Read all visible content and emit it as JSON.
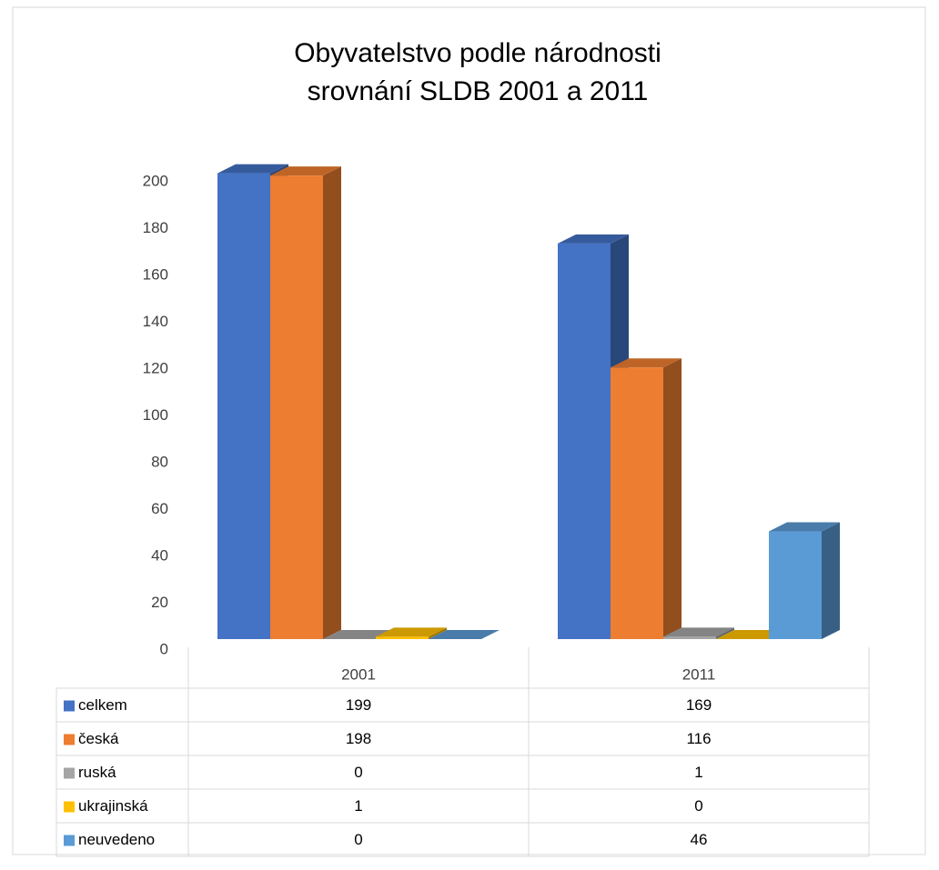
{
  "chart_data": {
    "type": "bar3d",
    "title": [
      "Obyvatelstvo podle národnosti",
      "srovnání SLDB 2001 a 2011"
    ],
    "categories": [
      "2001",
      "2011"
    ],
    "series": [
      {
        "name": "celkem",
        "color": "#4472c4",
        "values": [
          199,
          169
        ]
      },
      {
        "name": "česká",
        "color": "#ed7d31",
        "values": [
          198,
          116
        ]
      },
      {
        "name": "ruská",
        "color": "#a5a5a5",
        "values": [
          0,
          1
        ]
      },
      {
        "name": "ukrajinská",
        "color": "#ffc000",
        "values": [
          1,
          0
        ]
      },
      {
        "name": "neuvedeno",
        "color": "#5b9bd5",
        "values": [
          0,
          46
        ]
      }
    ],
    "ylim": [
      0,
      200
    ],
    "yticks": [
      0,
      20,
      40,
      60,
      80,
      100,
      120,
      140,
      160,
      180,
      200
    ],
    "grid": false,
    "data_table": true
  }
}
